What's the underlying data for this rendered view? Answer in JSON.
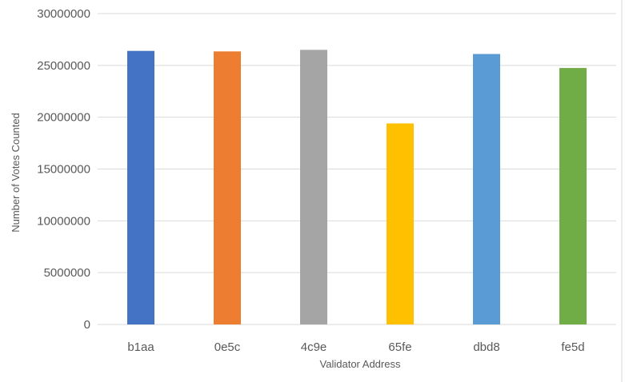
{
  "chart_data": {
    "type": "bar",
    "title": "",
    "xlabel": "Validator Address",
    "ylabel": "Number of Votes Counted",
    "categories": [
      "b1aa",
      "0e5c",
      "4c9e",
      "65fe",
      "dbd8",
      "fe5d"
    ],
    "values": [
      26400000,
      26350000,
      26500000,
      19400000,
      26100000,
      24750000
    ],
    "colors": [
      "#4472C4",
      "#ED7D31",
      "#A5A5A5",
      "#FFC000",
      "#5B9BD5",
      "#70AD47"
    ],
    "ylim": [
      0,
      30000000
    ],
    "yticks": [
      0,
      5000000,
      10000000,
      15000000,
      20000000,
      25000000,
      30000000
    ],
    "ytick_labels": [
      "0",
      "5000000",
      "10000000",
      "15000000",
      "20000000",
      "25000000",
      "30000000"
    ],
    "grid": true,
    "legend": "none"
  }
}
